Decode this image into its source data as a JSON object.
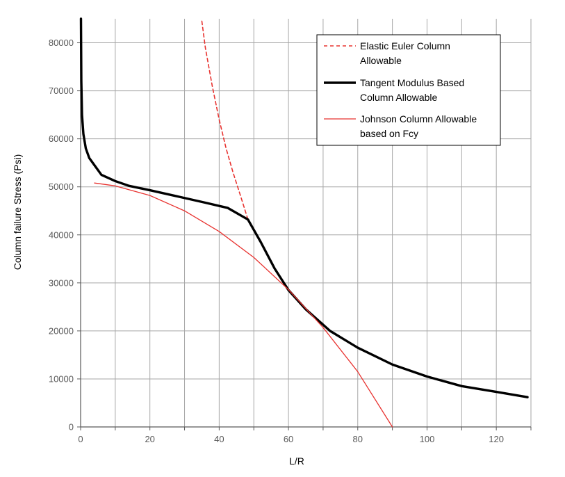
{
  "chart_data": {
    "type": "line",
    "xlabel": "L/R",
    "ylabel": "Column failure Stress (Psi)",
    "xlim": [
      0,
      130
    ],
    "ylim": [
      0,
      85000
    ],
    "x_ticks": [
      0,
      20,
      40,
      60,
      80,
      100,
      120
    ],
    "y_ticks": [
      0,
      10000,
      20000,
      30000,
      40000,
      50000,
      60000,
      70000,
      80000
    ],
    "grid": true,
    "legend_position": "top-right",
    "series": [
      {
        "name": "Elastic Euler Column Allowable",
        "legend_lines": [
          "Elastic Euler Column",
          "Allowable"
        ],
        "style": "dashed",
        "color": "#e8322f",
        "x": [
          35,
          36,
          38,
          40,
          42,
          44,
          46,
          48.3
        ],
        "y": [
          84500,
          79000,
          71000,
          64000,
          58000,
          53000,
          48500,
          43200
        ]
      },
      {
        "name": "Tangent Modulus Based Column Allowable",
        "legend_lines": [
          "Tangent Modulus Based",
          "Column Allowable"
        ],
        "style": "thick",
        "color": "#000000",
        "x": [
          0.1,
          0.2,
          0.4,
          0.8,
          1.5,
          2.5,
          4,
          6,
          10,
          14,
          20,
          28,
          36,
          42.5,
          48.3,
          52,
          56,
          60,
          65,
          72,
          80,
          90,
          100,
          110,
          120,
          129
        ],
        "y": [
          85000,
          72000,
          65000,
          61000,
          58000,
          56000,
          54500,
          52500,
          51200,
          50200,
          49300,
          48000,
          46700,
          45600,
          43200,
          38500,
          33000,
          28500,
          24500,
          20000,
          16500,
          13000,
          10500,
          8500,
          7300,
          6200
        ]
      },
      {
        "name": "Johnson Column Allowable based on Fcy",
        "legend_lines": [
          "Johnson Column Allowable",
          "based on Fcy"
        ],
        "style": "thin",
        "color": "#e8322f",
        "x": [
          4,
          10,
          20,
          30,
          40,
          50,
          60,
          70,
          80,
          90
        ],
        "y": [
          50800,
          50200,
          48200,
          45000,
          40700,
          35300,
          28600,
          20700,
          11500,
          0
        ]
      }
    ]
  }
}
